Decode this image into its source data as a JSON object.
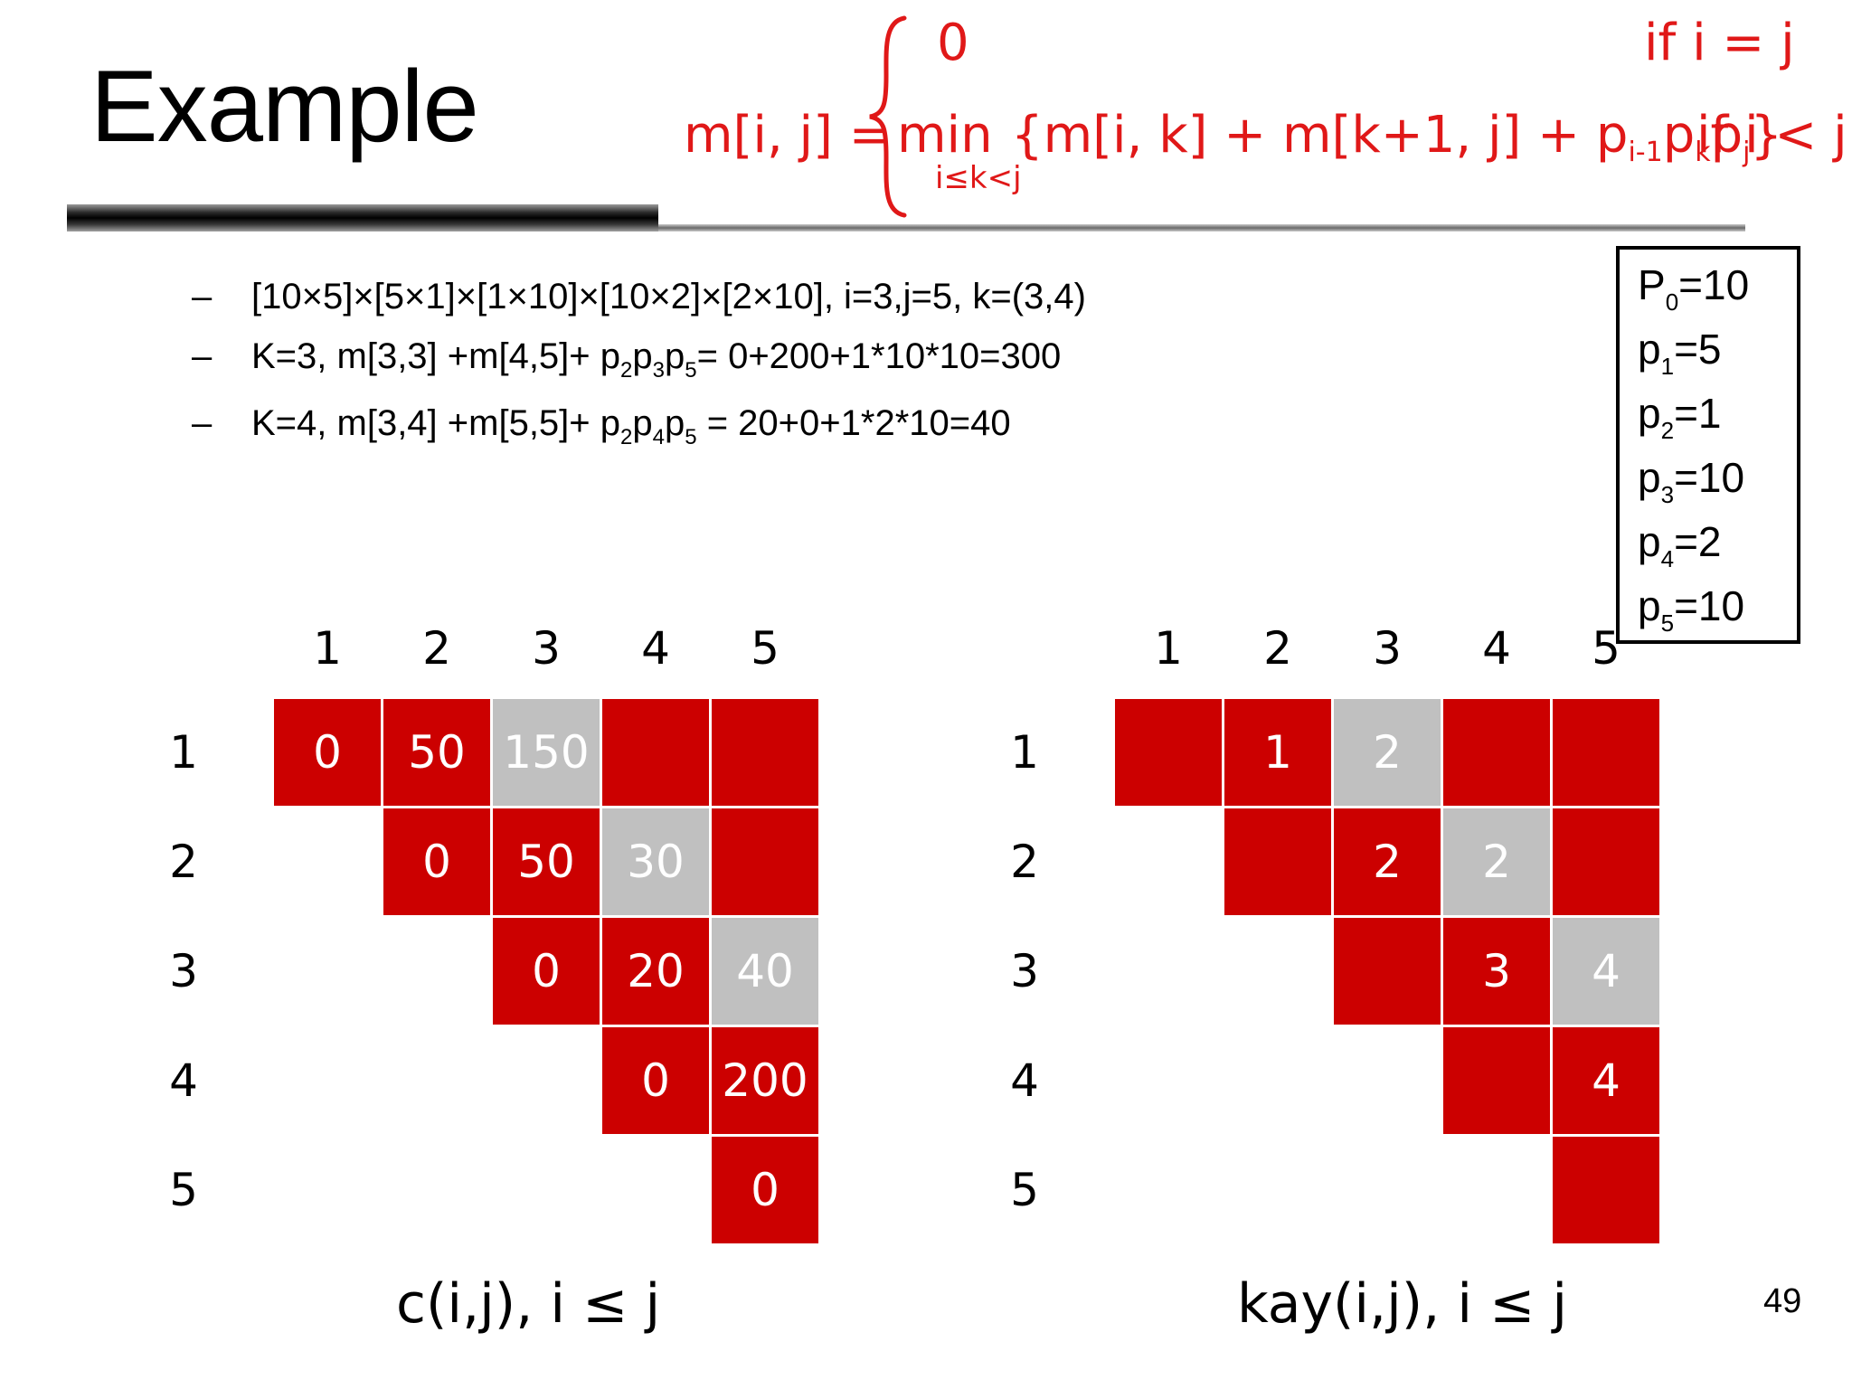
{
  "title": "Example",
  "formula": {
    "lhs": "m[i, j] =",
    "case1_value": "0",
    "case1_condition": "if i = j",
    "case2_min": "min",
    "case2_min_subscript": "i≤k<j",
    "case2_body_a": "{m[i, k] + m[k+1, j] + p",
    "case2_sub_i1": "i-1",
    "case2_body_b": "p",
    "case2_sub_k": "k",
    "case2_body_c": "p",
    "case2_sub_j": "j",
    "case2_body_d": "}",
    "case2_condition": "if i < j"
  },
  "bullets": {
    "dash": "–",
    "b1": "[10×5]×[5×1]×[1×10]×[10×2]×[2×10], i=3,j=5, k=(3,4)",
    "b2": {
      "pre": "K=3, m[3,3] +m[4,5]+ p",
      "s1": "2",
      "m1": "p",
      "s2": "3",
      "m2": "p",
      "s3": "5",
      "post": "= 0+200+1*10*10=300"
    },
    "b3": {
      "pre": "K=4, m[3,4] +m[5,5]+ p",
      "s1": "2",
      "m1": "p",
      "s2": "4",
      "m2": "p",
      "s3": "5",
      "post": " = 20+0+1*2*10=40"
    }
  },
  "p_values": [
    {
      "name": "P",
      "sub": "0",
      "value": "=10"
    },
    {
      "name": "p",
      "sub": "1",
      "value": "=5"
    },
    {
      "name": "p",
      "sub": "2",
      "value": "=1"
    },
    {
      "name": "p",
      "sub": "3",
      "value": "=10"
    },
    {
      "name": "p",
      "sub": "4",
      "value": "=2"
    },
    {
      "name": "p",
      "sub": "5",
      "value": "=10"
    }
  ],
  "tables": {
    "headers": [
      "1",
      "2",
      "3",
      "4",
      "5"
    ],
    "cost": {
      "caption": "c(i,j), i ≤ j",
      "rows": [
        [
          {
            "v": "0",
            "c": "r"
          },
          {
            "v": "50",
            "c": "r"
          },
          {
            "v": "150",
            "c": "g"
          },
          {
            "v": "",
            "c": "r"
          },
          {
            "v": "",
            "c": "r"
          }
        ],
        [
          null,
          {
            "v": "0",
            "c": "r"
          },
          {
            "v": "50",
            "c": "r"
          },
          {
            "v": "30",
            "c": "g"
          },
          {
            "v": "",
            "c": "r"
          }
        ],
        [
          null,
          null,
          {
            "v": "0",
            "c": "r"
          },
          {
            "v": "20",
            "c": "r"
          },
          {
            "v": "40",
            "c": "g"
          }
        ],
        [
          null,
          null,
          null,
          {
            "v": "0",
            "c": "r"
          },
          {
            "v": "200",
            "c": "r"
          }
        ],
        [
          null,
          null,
          null,
          null,
          {
            "v": "0",
            "c": "r"
          }
        ]
      ]
    },
    "kay": {
      "caption": "kay(i,j), i ≤ j",
      "rows": [
        [
          {
            "v": "",
            "c": "r"
          },
          {
            "v": "1",
            "c": "r"
          },
          {
            "v": "2",
            "c": "g"
          },
          {
            "v": "",
            "c": "r"
          },
          {
            "v": "",
            "c": "r"
          }
        ],
        [
          null,
          {
            "v": "",
            "c": "r"
          },
          {
            "v": "2",
            "c": "r"
          },
          {
            "v": "2",
            "c": "g"
          },
          {
            "v": "",
            "c": "r"
          }
        ],
        [
          null,
          null,
          {
            "v": "",
            "c": "r"
          },
          {
            "v": "3",
            "c": "r"
          },
          {
            "v": "4",
            "c": "g"
          }
        ],
        [
          null,
          null,
          null,
          {
            "v": "",
            "c": "r"
          },
          {
            "v": "4",
            "c": "r"
          }
        ],
        [
          null,
          null,
          null,
          null,
          {
            "v": "",
            "c": "r"
          }
        ]
      ]
    }
  },
  "colors": {
    "cell_red": "#cc0000",
    "cell_gray": "#c0c0c0",
    "formula_red": "#e01818"
  },
  "page_number": "49"
}
